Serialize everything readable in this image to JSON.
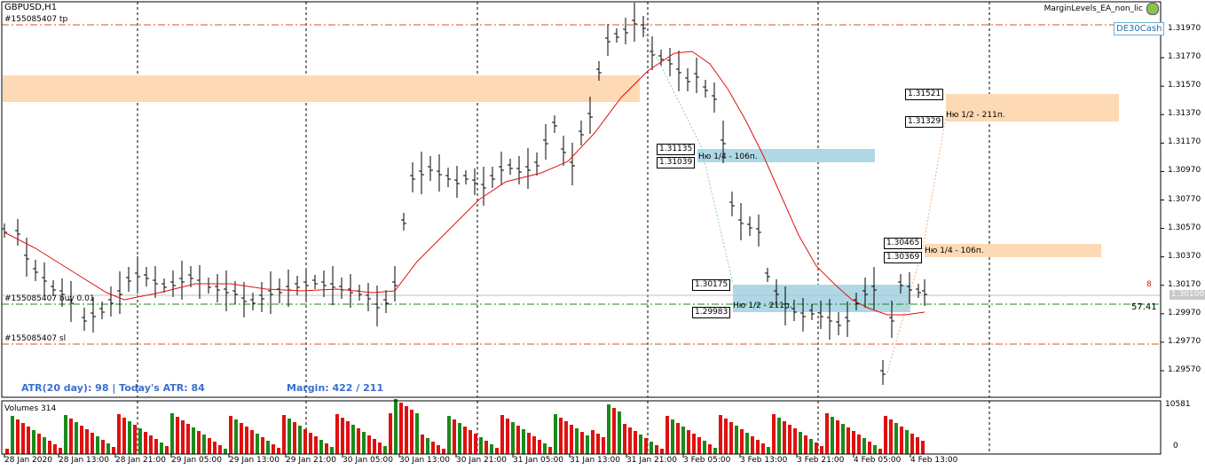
{
  "header": {
    "symbol": "GBPUSD,H1",
    "tp_label": "#155085407 tp",
    "buy_label": "#155085407 buy 0.01",
    "sl_label": "#155085407 sl",
    "ea_name": "MarginLevels_EA_non_lic",
    "symbol_tag": "DE30Cash"
  },
  "price_axis": {
    "labels": [
      "1.31970",
      "1.31770",
      "1.31570",
      "1.31370",
      "1.31170",
      "1.30970",
      "1.30770",
      "1.30570",
      "1.30370",
      "1.30170",
      "1.29970",
      "1.29770",
      "1.29570"
    ],
    "current_price": "1.30100",
    "spread": "8",
    "pips_to_level": "57.41"
  },
  "levels": {
    "upper_zone_top": "1.31521",
    "upper_zone_bottom": "1.31329",
    "upper_zone_note": "Ню 1/2 - 211п.",
    "mid_zone_top": "1.31135",
    "mid_zone_bottom": "1.31039",
    "mid_zone_note": "Ню 1/4 - 106п.",
    "right_mid_top": "1.30465",
    "right_mid_bottom": "1.30369",
    "right_mid_note": "Ню 1/4 - 106п.",
    "low_zone_top": "1.30175",
    "low_zone_bottom": "1.29983",
    "low_zone_note": "Ню 1/2 - 211п."
  },
  "stats": {
    "atr_text": "ATR(20 day): 98 | Today's ATR: 84",
    "margin_text": "Margin: 422 / 211"
  },
  "volumes": {
    "title": "Volumes 314",
    "max": "10581",
    "zero": "0"
  },
  "time_axis": {
    "labels": [
      "28 Jan 2020",
      "28 Jan 13:00",
      "28 Jan 21:00",
      "29 Jan 05:00",
      "29 Jan 13:00",
      "29 Jan 21:00",
      "30 Jan 05:00",
      "30 Jan 13:00",
      "30 Jan 21:00",
      "31 Jan 05:00",
      "31 Jan 13:00",
      "31 Jan 21:00",
      "3 Feb 05:00",
      "3 Feb 13:00",
      "3 Feb 21:00",
      "4 Feb 05:00",
      "4 Feb 13:00"
    ]
  },
  "colors": {
    "up_volume": "#1a8a1a",
    "down_volume": "#e01010",
    "ma_line": "#e01010",
    "orange_zone": "#fdd9b5",
    "blue_zone": "#aed8e6",
    "grid": "#000000",
    "level_line": "#e05020",
    "buy_line": "#1a8a1a"
  }
}
